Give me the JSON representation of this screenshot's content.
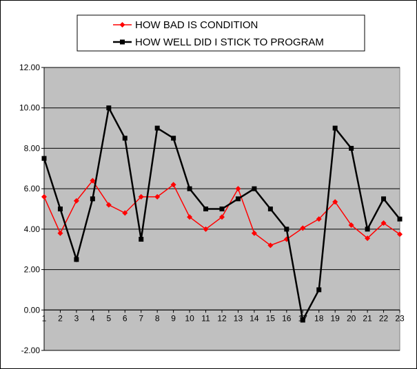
{
  "chart_data": {
    "type": "line",
    "title": "",
    "xlabel": "",
    "ylabel": "",
    "categories": [
      "1",
      "2",
      "3",
      "4",
      "5",
      "6",
      "7",
      "8",
      "9",
      "10",
      "11",
      "12",
      "13",
      "14",
      "15",
      "16",
      "17",
      "18",
      "19",
      "20",
      "21",
      "22",
      "23"
    ],
    "ylim": [
      -2,
      12
    ],
    "yticks": [
      "-2.00",
      "0.00",
      "2.00",
      "4.00",
      "6.00",
      "8.00",
      "10.00",
      "12.00"
    ],
    "grid": "horizontal",
    "plot_background": "#c0c0c0",
    "legend_position": "top",
    "series": [
      {
        "name": "HOW BAD IS CONDITION",
        "color": "#ff0000",
        "marker": "diamond",
        "values": [
          5.6,
          3.8,
          5.4,
          6.4,
          5.2,
          4.8,
          5.6,
          5.6,
          6.2,
          4.6,
          4.0,
          4.6,
          6.0,
          3.8,
          3.2,
          3.5,
          4.05,
          4.5,
          5.35,
          4.2,
          3.55,
          4.3,
          3.75
        ]
      },
      {
        "name": "HOW WELL DID I STICK TO PROGRAM",
        "color": "#000000",
        "marker": "square",
        "values": [
          7.5,
          5.0,
          2.5,
          5.5,
          10.0,
          8.5,
          3.5,
          9.0,
          8.5,
          6.0,
          5.0,
          5.0,
          5.5,
          6.0,
          5.0,
          4.0,
          -0.5,
          1.0,
          9.0,
          8.0,
          4.0,
          5.5,
          4.5
        ]
      }
    ]
  }
}
